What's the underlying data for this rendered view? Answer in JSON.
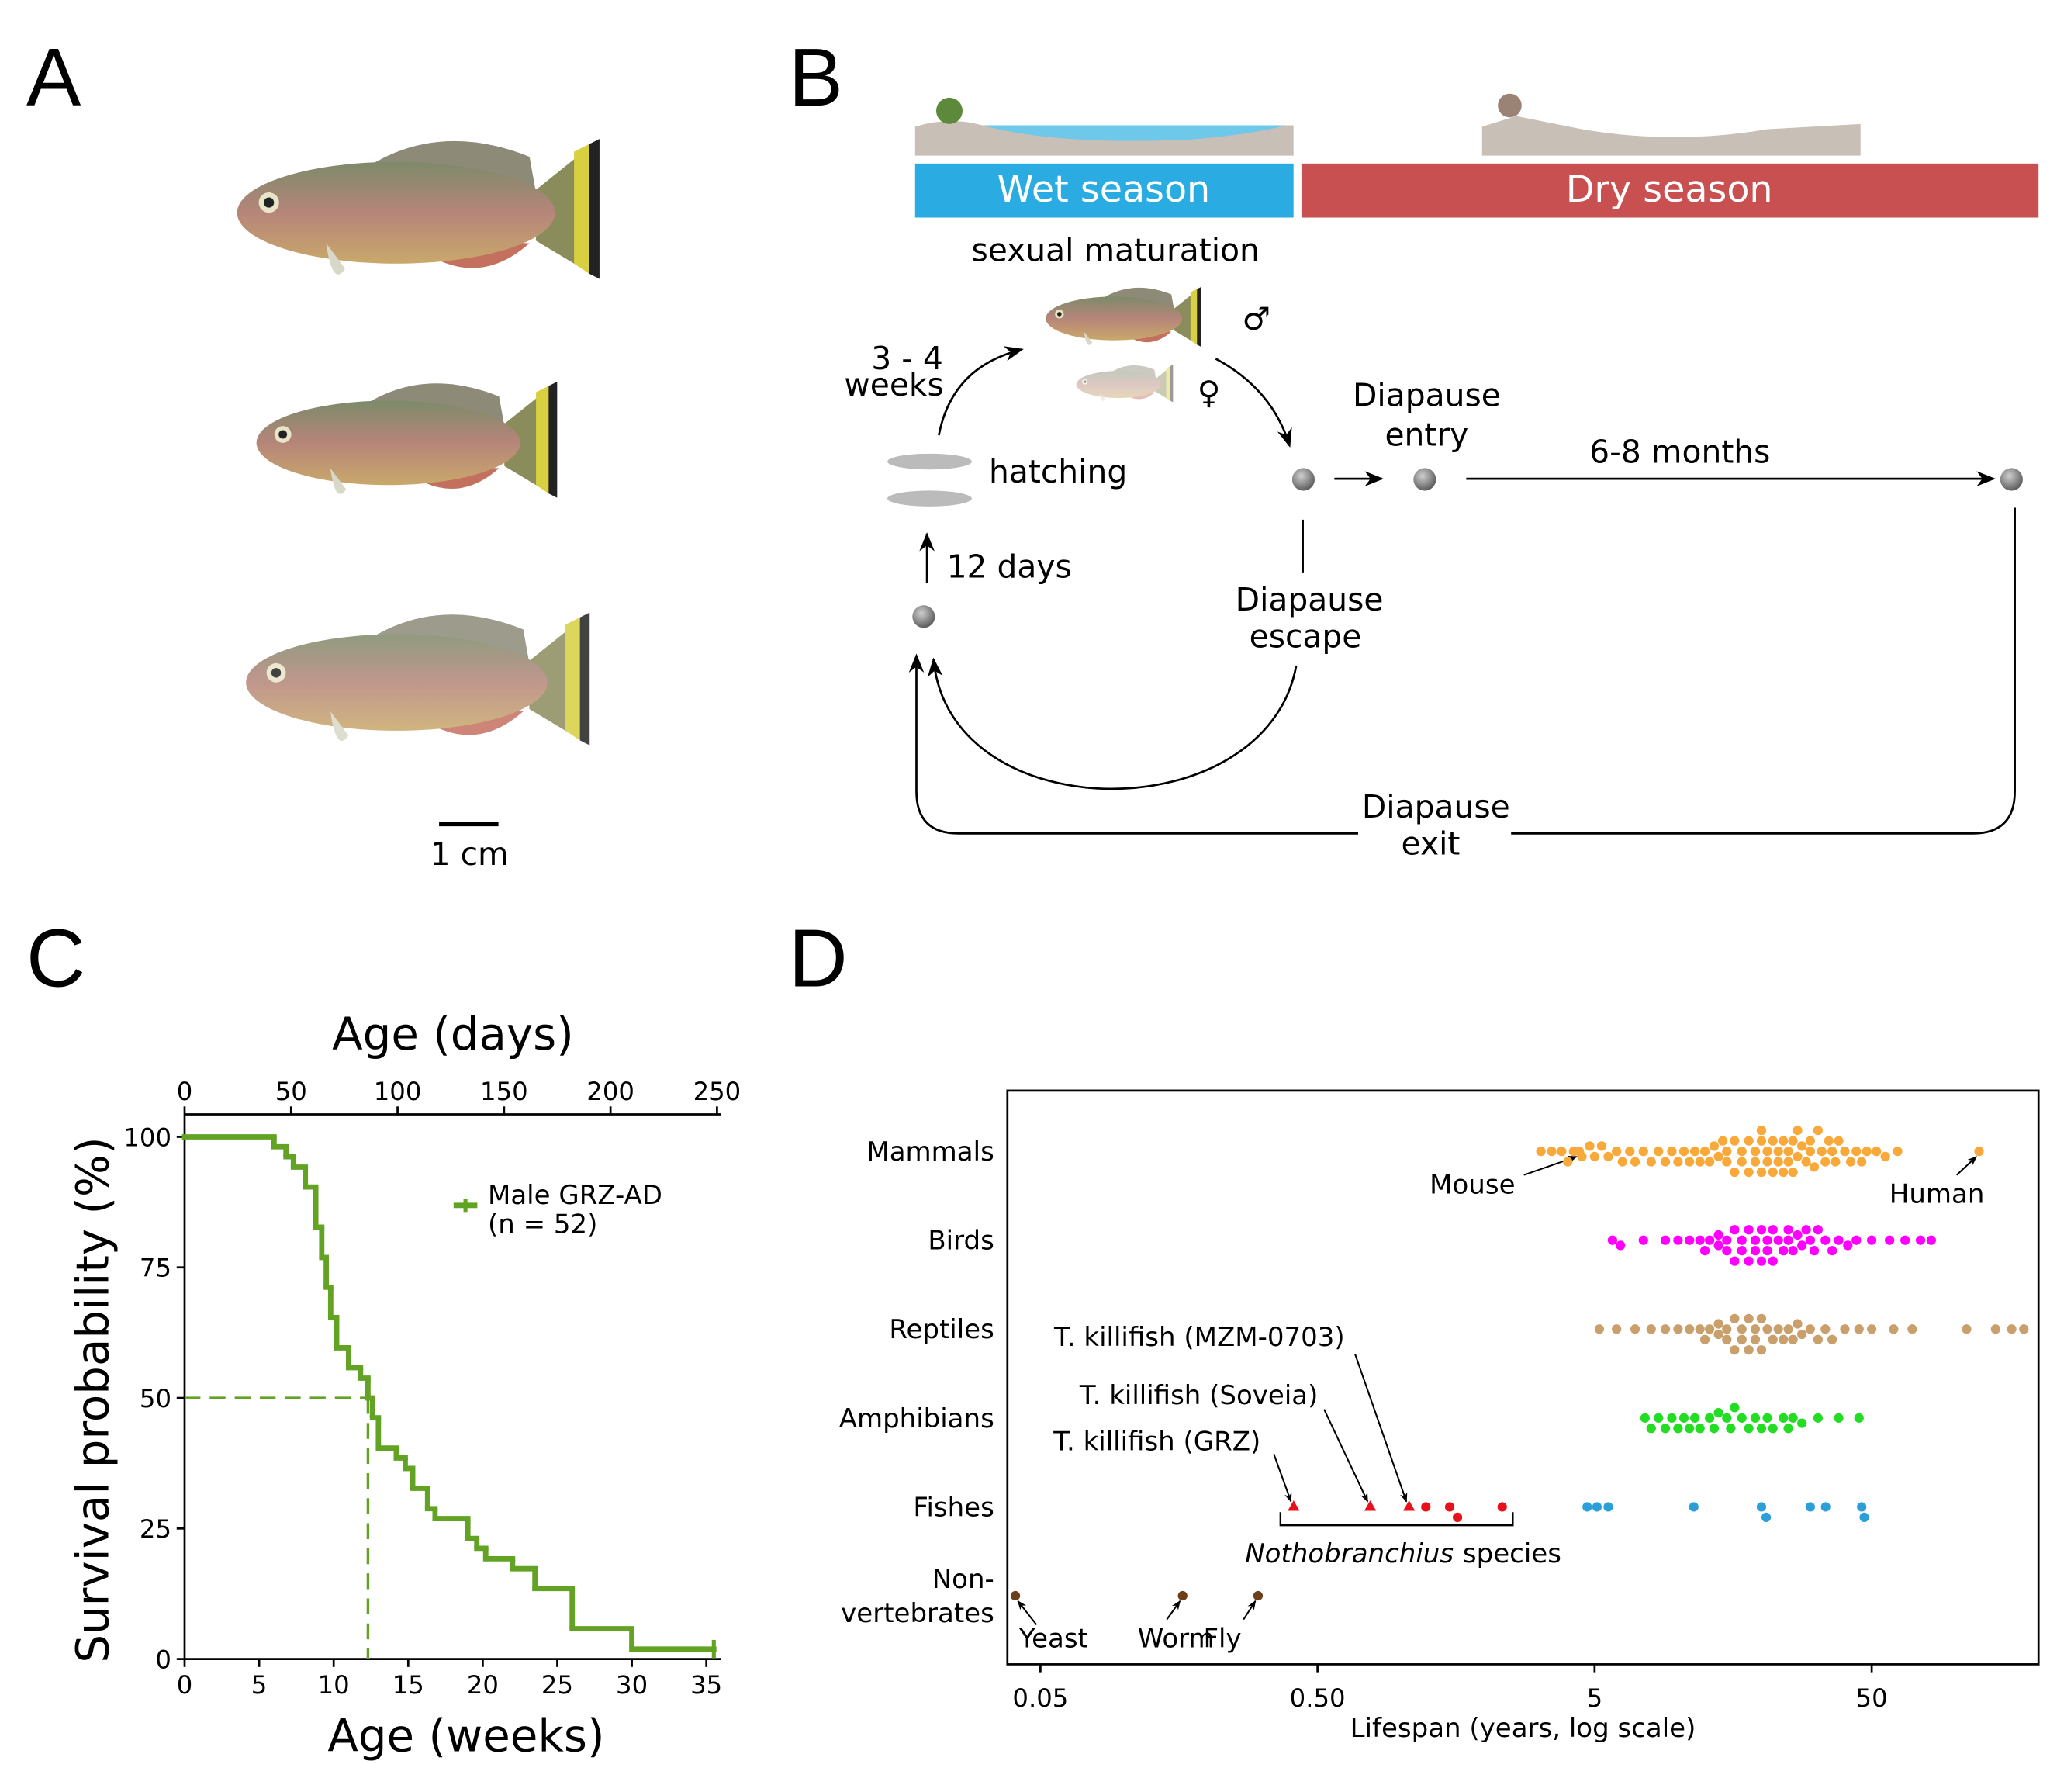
{
  "panel_a": {
    "label": "A",
    "scale_bar": "1 cm"
  },
  "panel_b": {
    "label": "B",
    "wet_season": "Wet season",
    "dry_season": "Dry season",
    "sexual_maturation": "sexual maturation",
    "maturation_time": [
      "3 - 4",
      "weeks"
    ],
    "male": "♂",
    "female": "♀",
    "hatching": "hatching",
    "hatching_time": "12 days",
    "diapause_entry": [
      "Diapause",
      "entry"
    ],
    "dry_duration": "6-8 months",
    "diapause_escape": [
      "Diapause",
      "escape"
    ],
    "diapause_exit": [
      "Diapause",
      "exit"
    ]
  },
  "chart_data": [
    {
      "panel_label": "C",
      "type": "step",
      "xlabel": "Age (weeks)",
      "x2label": "Age (days)",
      "ylabel": "Survival probability (%)",
      "xlim": [
        0,
        36
      ],
      "xticks": [
        0,
        5,
        10,
        15,
        20,
        25,
        30,
        35
      ],
      "x2lim": [
        0,
        252
      ],
      "x2ticks": [
        0,
        50,
        100,
        150,
        200,
        250
      ],
      "ylim": [
        0,
        104.3
      ],
      "yticks": [
        0,
        25,
        50,
        75,
        100
      ],
      "series": [
        {
          "name": "Male GRZ-AD",
          "legend_subtitle": "(n = 52)",
          "color": "#62a324",
          "x": [
            0,
            6.0,
            6.8,
            7.3,
            8.1,
            8.8,
            9.2,
            9.5,
            9.8,
            10.2,
            11.0,
            11.8,
            12.3,
            12.6,
            13.0,
            14.2,
            14.8,
            15.3,
            16.3,
            16.8,
            19.0,
            19.6,
            20.2,
            22.0,
            23.5,
            26.0,
            30.0,
            35.5
          ],
          "values": [
            100,
            98.1,
            96.2,
            94.2,
            90.4,
            82.7,
            76.9,
            71.2,
            65.4,
            59.6,
            55.8,
            53.8,
            50.0,
            46.2,
            40.4,
            38.5,
            36.5,
            32.7,
            28.8,
            26.9,
            23.1,
            21.2,
            19.2,
            17.3,
            13.5,
            5.8,
            1.9,
            1.9
          ]
        }
      ],
      "median": {
        "x": 12.3,
        "y": 50
      }
    },
    {
      "panel_label": "D",
      "type": "swarm",
      "xlabel": "Lifespan (years, log scale)",
      "xscale": "log",
      "xlim": [
        0.038,
        200
      ],
      "xticks": [
        0.05,
        {
          "value": 0.5,
          "label": "0.50"
        },
        5,
        50
      ],
      "bracket_label": [
        "Nothobranchius",
        "species"
      ],
      "groups": [
        {
          "label": "Mammals",
          "series": [
            {
              "color": "#f8a93a",
              "values": [
                3.2,
                3.5,
                3.8,
                4.0,
                4.2,
                4.5,
                4.8,
                5.0,
                5.3,
                5.6,
                6.0,
                6.3,
                6.7,
                7.0,
                7.5,
                8.0,
                8.5,
                9.0,
                9.5,
                10,
                10.5,
                11,
                11.5,
                12,
                12.5,
                13,
                13.5,
                14,
                14.5,
                15,
                15,
                16,
                16,
                17,
                17,
                18,
                18,
                19,
                19,
                20,
                20,
                20,
                21,
                21,
                22,
                22,
                23,
                23,
                24,
                24,
                25,
                25,
                26,
                26,
                27,
                27,
                28,
                29,
                30,
                30,
                31,
                32,
                33,
                34,
                35,
                36,
                37,
                38,
                40,
                42,
                44,
                46,
                48,
                52,
                56,
                62
              ]
            },
            {
              "color": "#f8a93a",
              "values": [
                4.4,
                122
              ],
              "labels": [
                "Mouse",
                "Human"
              ]
            }
          ]
        },
        {
          "label": "Birds",
          "series": [
            {
              "color": "#ff00ff",
              "values": [
                5.8,
                6.2,
                7.5,
                9,
                10,
                11,
                12,
                12.5,
                13,
                14,
                14,
                15,
                15,
                16,
                16,
                17,
                17,
                18,
                18,
                19,
                19,
                20,
                20,
                21,
                21,
                22,
                22,
                23,
                24,
                25,
                25,
                26,
                27,
                28,
                29,
                30,
                31,
                32,
                34,
                36,
                38,
                41,
                44,
                50,
                58,
                66,
                75,
                82
              ]
            }
          ]
        },
        {
          "label": "Reptiles",
          "series": [
            {
              "color": "#c9a06c",
              "values": [
                5.2,
                6,
                7,
                8,
                9,
                10,
                11,
                12,
                12.5,
                13,
                14,
                14,
                15,
                15,
                16,
                16,
                17,
                17,
                18,
                18,
                19,
                19,
                20,
                20,
                21,
                22,
                23,
                24,
                25,
                26,
                27,
                28,
                30,
                32,
                34,
                36,
                40,
                45,
                50,
                60,
                70,
                110,
                140,
                160,
                177
              ]
            }
          ]
        },
        {
          "label": "Amphibians",
          "series": [
            {
              "color": "#22dd22",
              "values": [
                7.6,
                8,
                8.5,
                9,
                9.5,
                10,
                10.5,
                11,
                11.5,
                12,
                13,
                13.5,
                14,
                15,
                15.5,
                16,
                17,
                18,
                19,
                20,
                21,
                22,
                24,
                25,
                26,
                28,
                32,
                38,
                45
              ]
            }
          ]
        },
        {
          "label": "Fishes",
          "series": [
            {
              "color": "#2c9fd9",
              "values": [
                4.7,
                5.1,
                5.6,
                11.4,
                20,
                20.8,
                30,
                34.1,
                46,
                47
              ]
            },
            {
              "color": "#e8101a",
              "marker": "triangle",
              "values": [
                0.41,
                0.775,
                1.07
              ],
              "labels": [
                "T. killifish (GRZ)",
                "T. killifish (Soveia)",
                "T. killifish (MZM-0703)"
              ]
            },
            {
              "color": "#e8101a",
              "values": [
                1.23,
                1.5,
                1.6,
                2.32
              ]
            }
          ]
        },
        {
          "label": [
            "Non-",
            "vertebrates"
          ],
          "series": [
            {
              "color": "#6b3f1a",
              "values": [
                0.0406,
                0.163,
                0.305
              ],
              "labels": [
                "Yeast",
                "Worm",
                "Fly"
              ]
            }
          ]
        }
      ]
    }
  ]
}
